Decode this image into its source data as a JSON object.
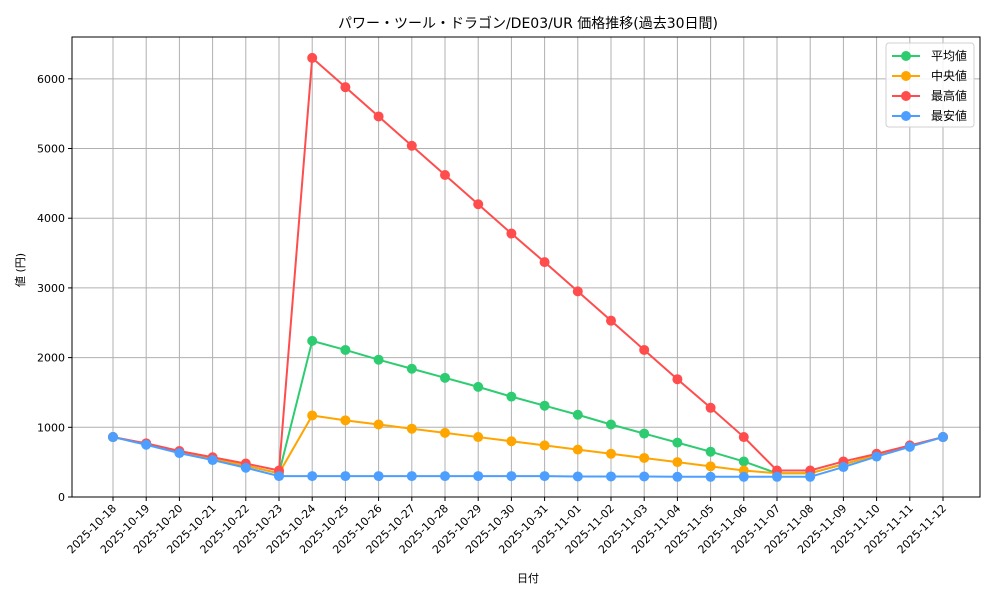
{
  "chart_data": {
    "type": "line",
    "title": "パワー・ツール・ドラゴン/DE03/UR 価格推移(過去30日間)",
    "xlabel": "日付",
    "ylabel": "値 (円)",
    "ylim": [
      0,
      6600
    ],
    "yticks": [
      0,
      1000,
      2000,
      3000,
      4000,
      5000,
      6000
    ],
    "grid": true,
    "legend_position": "upper right",
    "categories": [
      "2025-10-18",
      "2025-10-19",
      "2025-10-20",
      "2025-10-21",
      "2025-10-22",
      "2025-10-23",
      "2025-10-24",
      "2025-10-25",
      "2025-10-26",
      "2025-10-27",
      "2025-10-28",
      "2025-10-29",
      "2025-10-30",
      "2025-10-31",
      "2025-11-01",
      "2025-11-02",
      "2025-11-03",
      "2025-11-04",
      "2025-11-05",
      "2025-11-06",
      "2025-11-07",
      "2025-11-08",
      "2025-11-09",
      "2025-11-10",
      "2025-11-11",
      "2025-11-12"
    ],
    "series": [
      {
        "name": "平均値",
        "color": "#2ecc71",
        "values": [
          860,
          760,
          650,
          550,
          450,
          340,
          2240,
          2110,
          1970,
          1840,
          1710,
          1580,
          1440,
          1310,
          1180,
          1040,
          910,
          780,
          650,
          510,
          340,
          340,
          470,
          600,
          730,
          860
        ]
      },
      {
        "name": "中央値",
        "color": "#ffa500",
        "values": [
          860,
          760,
          650,
          550,
          450,
          340,
          1170,
          1100,
          1040,
          980,
          920,
          860,
          800,
          740,
          680,
          620,
          560,
          500,
          440,
          380,
          340,
          340,
          470,
          600,
          730,
          860
        ]
      },
      {
        "name": "最高値",
        "color": "#ff4d4d",
        "values": [
          860,
          770,
          660,
          570,
          480,
          380,
          6300,
          5880,
          5460,
          5040,
          4620,
          4200,
          3780,
          3370,
          2950,
          2530,
          2110,
          1690,
          1280,
          860,
          380,
          380,
          510,
          620,
          740,
          860
        ]
      },
      {
        "name": "最安値",
        "color": "#4d9fff",
        "values": [
          860,
          750,
          630,
          530,
          420,
          300,
          300,
          300,
          300,
          300,
          300,
          300,
          300,
          300,
          295,
          295,
          295,
          290,
          290,
          290,
          290,
          290,
          430,
          580,
          720,
          860
        ]
      }
    ]
  }
}
